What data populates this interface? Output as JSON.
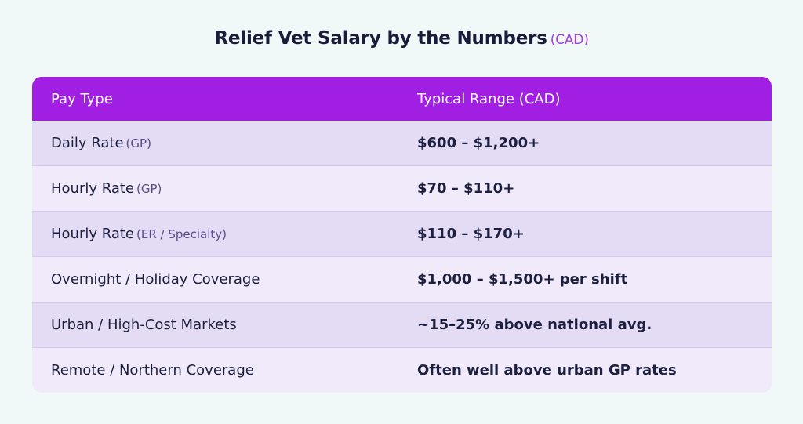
{
  "title": {
    "main": "Relief Vet Salary by the Numbers",
    "unit": "(CAD)"
  },
  "table": {
    "headers": [
      "Pay Type",
      "Typical Range (CAD)"
    ],
    "rows": [
      {
        "type": "Daily Rate",
        "note": "(GP)",
        "range": "$600 – $1,200+"
      },
      {
        "type": "Hourly Rate",
        "note": "(GP)",
        "range": "$70 – $110+"
      },
      {
        "type": "Hourly Rate",
        "note": "(ER / Specialty)",
        "range": "$110 – $170+"
      },
      {
        "type": "Overnight / Holiday Coverage",
        "note": "",
        "range": "$1,000 – $1,500+ per shift"
      },
      {
        "type": "Urban / High-Cost Markets",
        "note": "",
        "range": "~15–25% above national avg."
      },
      {
        "type": "Remote / Northern Coverage",
        "note": "",
        "range": "Often well above urban GP rates"
      }
    ]
  },
  "colors": {
    "header_bg": "#a01fe2",
    "accent": "#a23be8",
    "row_odd": "#e4dbf5",
    "row_even": "#f1eafb"
  }
}
